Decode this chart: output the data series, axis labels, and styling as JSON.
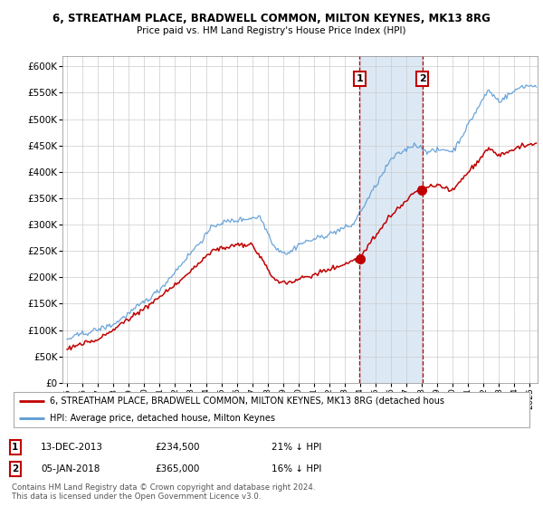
{
  "title1": "6, STREATHAM PLACE, BRADWELL COMMON, MILTON KEYNES, MK13 8RG",
  "title2": "Price paid vs. HM Land Registry's House Price Index (HPI)",
  "legend_label1": "6, STREATHAM PLACE, BRADWELL COMMON, MILTON KEYNES, MK13 8RG (detached hous",
  "legend_label2": "HPI: Average price, detached house, Milton Keynes",
  "footnote": "Contains HM Land Registry data © Crown copyright and database right 2024.\nThis data is licensed under the Open Government Licence v3.0.",
  "sale1_date": "13-DEC-2013",
  "sale1_price": 234500,
  "sale1_pct": "21% ↓ HPI",
  "sale2_date": "05-JAN-2018",
  "sale2_price": 365000,
  "sale2_pct": "16% ↓ HPI",
  "hpi_color": "#5b9bd5",
  "price_color": "#c00000",
  "marker_color": "#c00000",
  "vline_color": "#c00000",
  "bg_color": "#dce9f5",
  "ylim": [
    0,
    620000
  ],
  "yticks": [
    0,
    50000,
    100000,
    150000,
    200000,
    250000,
    300000,
    350000,
    400000,
    450000,
    500000,
    550000,
    600000
  ],
  "xlim_start": 1994.7,
  "xlim_end": 2025.5,
  "sale1_year": 2013.96,
  "sale2_year": 2018.04
}
